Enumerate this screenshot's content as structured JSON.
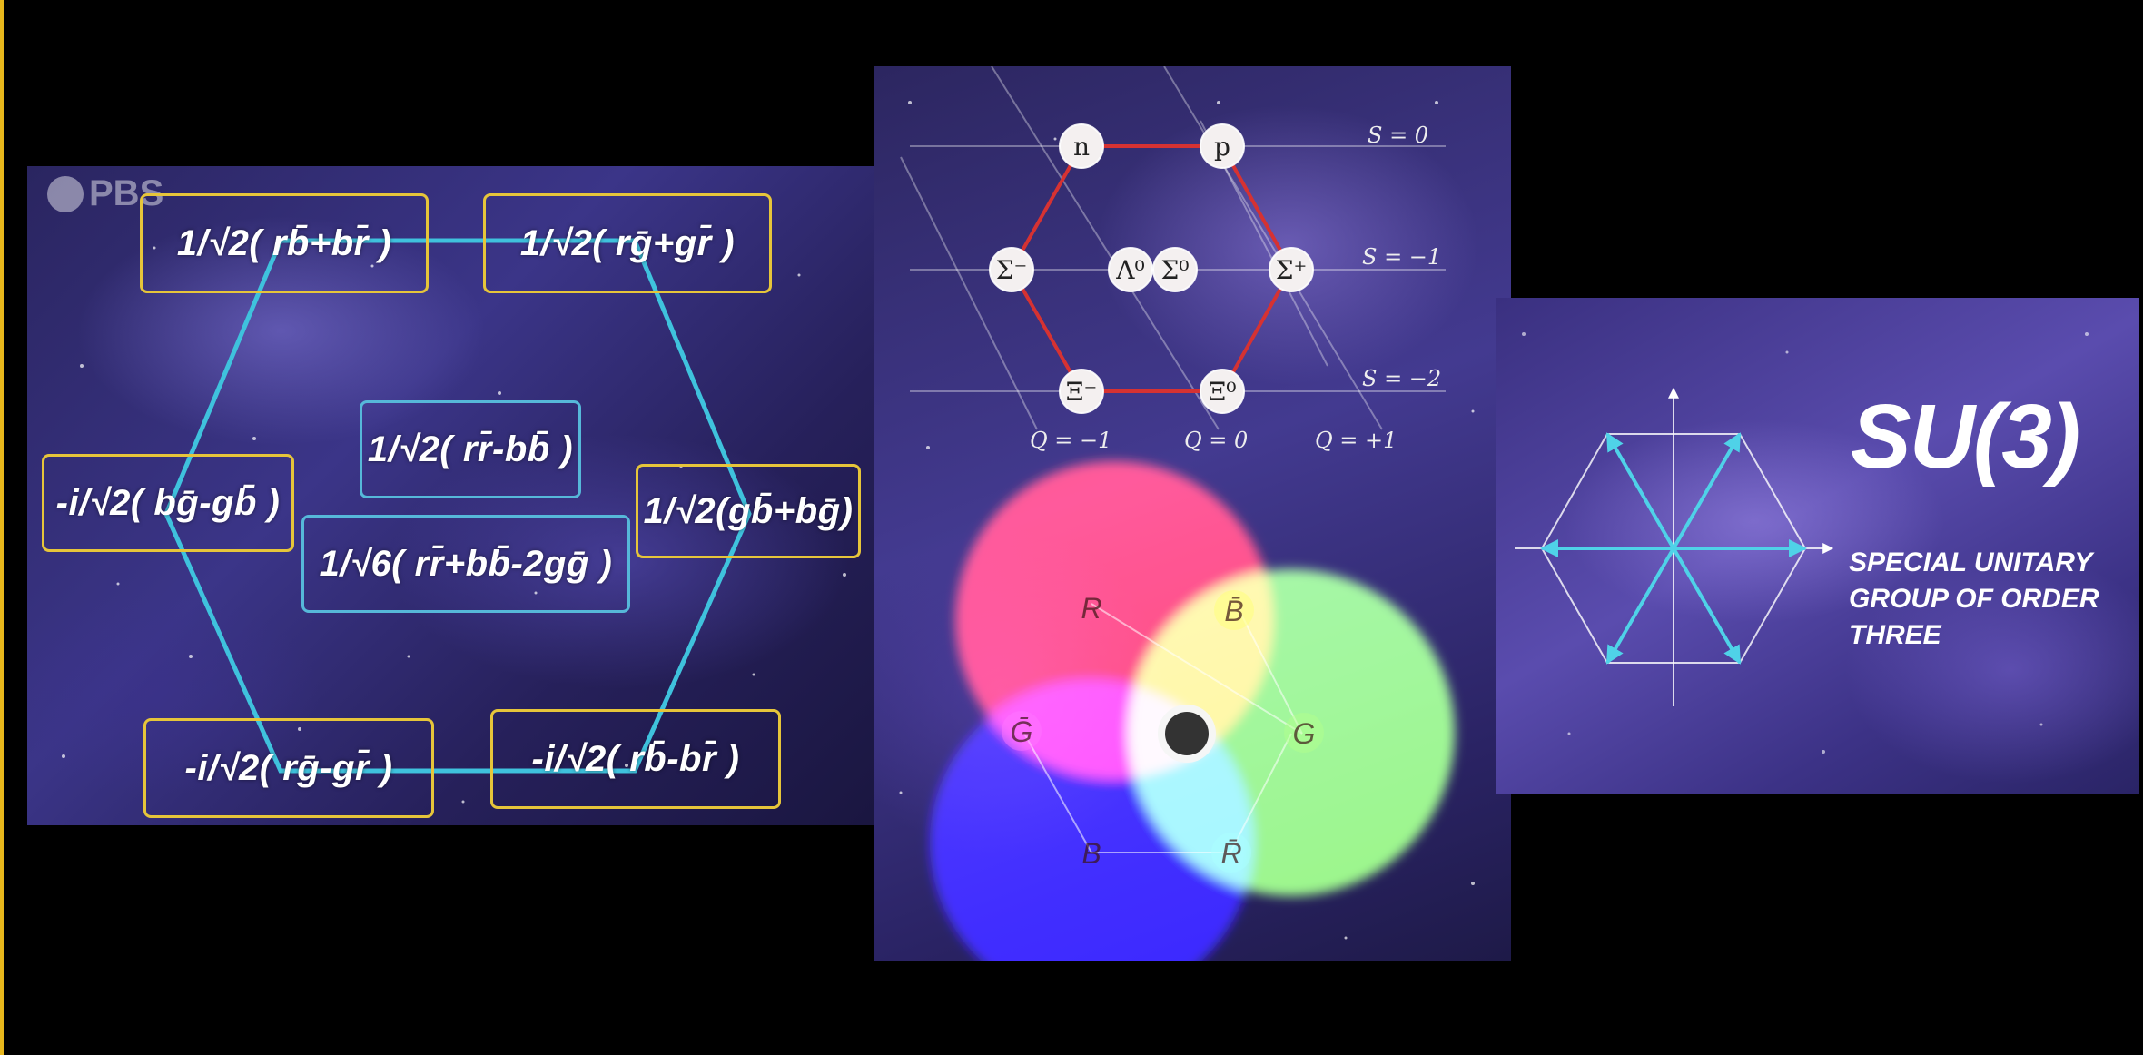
{
  "panel_left": {
    "watermark": "PBS",
    "formulas": {
      "top_left": "1/√2( rb̄+br̄ )",
      "top_right": "1/√2( rḡ+gr̄ )",
      "mid_left": "-i/√2( bḡ-gb̄ )",
      "mid_right": "1/√2(gb̄+bḡ)",
      "center_upper": "1/√2( rr̄-bb̄ )",
      "center_lower": "1/√6( rr̄+bb̄-2gḡ )",
      "bottom_left": "-i/√2( rḡ-gr̄ )",
      "bottom_right": "-i/√2( rb̄-br̄ )"
    },
    "colors": {
      "formula_border": "#e6c53a",
      "center_border": "#56b8d9",
      "hexagon": "#3fc2dd"
    }
  },
  "panel_middle": {
    "baryons": {
      "n": "n",
      "p": "p",
      "sigma_minus": "Σ⁻",
      "lambda0": "Λ⁰",
      "sigma0": "Σ⁰",
      "sigma_plus": "Σ⁺",
      "xi_minus": "Ξ⁻",
      "xi0": "Ξ⁰"
    },
    "strangeness": {
      "s0": "S = 0",
      "s1": "S = −1",
      "s2": "S = −2"
    },
    "charge": {
      "q_minus": "Q = −1",
      "q_zero": "Q = 0",
      "q_plus": "Q = +1"
    },
    "color_labels": {
      "r": "R",
      "g": "G",
      "b": "B",
      "anti_r": "R̄",
      "anti_g": "Ḡ",
      "anti_b": "B̄"
    },
    "colors": {
      "red": "#ff2a1e",
      "green": "#8cf550",
      "blue": "#1a10ff",
      "octet_line": "#d63232"
    }
  },
  "panel_right": {
    "title": "SU(3)",
    "subtitle": [
      "SPECIAL UNITARY",
      "GROUP OF ORDER",
      "THREE"
    ],
    "colors": {
      "arrows": "#4fd2e8"
    }
  }
}
